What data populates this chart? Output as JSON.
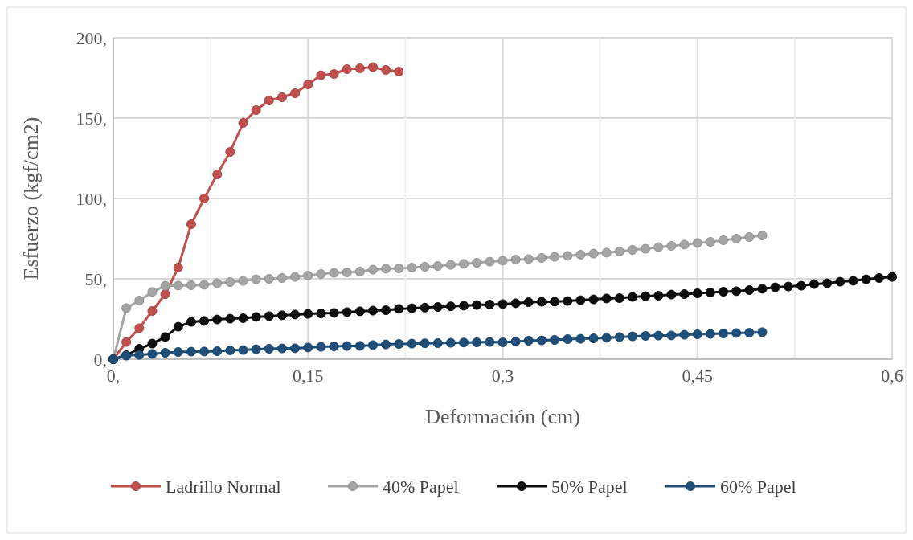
{
  "chart_data": {
    "type": "line",
    "xlabel": "Deformación (cm)",
    "ylabel": "Esfuerzo (kgf/cm2)",
    "xlim": [
      0,
      0.6
    ],
    "ylim": [
      0,
      200
    ],
    "xticks": [
      {
        "value": 0,
        "label": "0,"
      },
      {
        "value": 0.075,
        "label": null
      },
      {
        "value": 0.15,
        "label": "0,15"
      },
      {
        "value": 0.225,
        "label": null
      },
      {
        "value": 0.3,
        "label": "0,3"
      },
      {
        "value": 0.375,
        "label": null
      },
      {
        "value": 0.45,
        "label": "0,45"
      },
      {
        "value": 0.525,
        "label": null
      },
      {
        "value": 0.6,
        "label": "0,6"
      }
    ],
    "yticks": [
      {
        "value": 0,
        "label": "0,"
      },
      {
        "value": 50,
        "label": "50,"
      },
      {
        "value": 100,
        "label": "100,"
      },
      {
        "value": 150,
        "label": "150,"
      },
      {
        "value": 200,
        "label": "200,"
      }
    ],
    "grid": true,
    "legend": "bottom",
    "marker": "circle",
    "series": [
      {
        "name": "Ladrillo Normal",
        "color": "#c0504d",
        "x": [
          0,
          0.01,
          0.02,
          0.03,
          0.04,
          0.05,
          0.06,
          0.07,
          0.08,
          0.09,
          0.1,
          0.11,
          0.12,
          0.13,
          0.14,
          0.15,
          0.16,
          0.17,
          0.18,
          0.19,
          0.2,
          0.21,
          0.22
        ],
        "values": [
          0,
          10.7,
          19.3,
          30,
          40.5,
          57,
          84,
          100,
          115,
          129,
          147,
          155,
          161,
          163,
          165.5,
          171,
          176.7,
          177.5,
          180.5,
          181,
          181.7,
          180,
          179
        ]
      },
      {
        "name": "40% Papel",
        "color": "#a5a5a5",
        "x": [
          0,
          0.01,
          0.02,
          0.03,
          0.04,
          0.05,
          0.06,
          0.07,
          0.08,
          0.09,
          0.1,
          0.11,
          0.12,
          0.13,
          0.14,
          0.15,
          0.16,
          0.17,
          0.18,
          0.19,
          0.2,
          0.21,
          0.22,
          0.23,
          0.24,
          0.25,
          0.26,
          0.27,
          0.28,
          0.29,
          0.3,
          0.31,
          0.32,
          0.33,
          0.34,
          0.35,
          0.36,
          0.37,
          0.38,
          0.39,
          0.4,
          0.41,
          0.42,
          0.43,
          0.44,
          0.45,
          0.46,
          0.47,
          0.48,
          0.49,
          0.5
        ],
        "values": [
          0,
          31.8,
          36.5,
          41.8,
          45.7,
          45.8,
          46,
          46.3,
          47.2,
          48,
          48.7,
          49.7,
          50,
          50.5,
          51.2,
          52,
          53,
          53.7,
          54,
          54.5,
          55.7,
          56.3,
          56.5,
          57,
          57.5,
          58,
          58.7,
          59.3,
          60,
          60.7,
          61.3,
          62,
          62.3,
          63,
          63.7,
          64.3,
          65,
          65.7,
          66.3,
          67,
          68,
          68.7,
          69.7,
          70.5,
          71.3,
          72.3,
          73,
          74,
          75,
          76,
          77
        ]
      },
      {
        "name": "50% Papel",
        "color": "#0d0d0d",
        "x": [
          0,
          0.01,
          0.02,
          0.03,
          0.04,
          0.05,
          0.06,
          0.07,
          0.08,
          0.09,
          0.1,
          0.11,
          0.12,
          0.13,
          0.14,
          0.15,
          0.16,
          0.17,
          0.18,
          0.19,
          0.2,
          0.21,
          0.22,
          0.23,
          0.24,
          0.25,
          0.26,
          0.27,
          0.28,
          0.29,
          0.3,
          0.31,
          0.32,
          0.33,
          0.34,
          0.35,
          0.36,
          0.37,
          0.38,
          0.39,
          0.4,
          0.41,
          0.42,
          0.43,
          0.44,
          0.45,
          0.46,
          0.47,
          0.48,
          0.49,
          0.5,
          0.51,
          0.52,
          0.53,
          0.54,
          0.55,
          0.56,
          0.57,
          0.58,
          0.59,
          0.6
        ],
        "values": [
          0,
          2.5,
          6.5,
          9.7,
          13.8,
          20.2,
          23.2,
          23.8,
          24.7,
          25.2,
          25.5,
          26.3,
          26.8,
          27.3,
          27.8,
          28.2,
          28.5,
          28.8,
          29.3,
          29.8,
          30.2,
          30.5,
          31.3,
          31.7,
          32.1,
          32.5,
          32.9,
          33.3,
          33.7,
          34,
          34.3,
          34.8,
          35.5,
          35.7,
          35.8,
          36.2,
          36.7,
          37.2,
          37.8,
          38,
          38.7,
          39.2,
          39.5,
          40.2,
          40.5,
          41,
          41.5,
          42,
          42.3,
          43,
          43.8,
          44.7,
          45.2,
          45.7,
          46.7,
          47.2,
          48.2,
          48.8,
          49.7,
          50.5,
          51.2
        ]
      },
      {
        "name": "60% Papel",
        "color": "#1f4e79",
        "x": [
          0,
          0.01,
          0.02,
          0.03,
          0.04,
          0.05,
          0.06,
          0.07,
          0.08,
          0.09,
          0.1,
          0.11,
          0.12,
          0.13,
          0.14,
          0.15,
          0.16,
          0.17,
          0.18,
          0.19,
          0.2,
          0.21,
          0.22,
          0.23,
          0.24,
          0.25,
          0.26,
          0.27,
          0.28,
          0.29,
          0.3,
          0.31,
          0.32,
          0.33,
          0.34,
          0.35,
          0.36,
          0.37,
          0.38,
          0.39,
          0.4,
          0.41,
          0.42,
          0.43,
          0.44,
          0.45,
          0.46,
          0.47,
          0.48,
          0.49,
          0.5
        ],
        "values": [
          0,
          2.2,
          2.7,
          3.3,
          4,
          4.5,
          4.7,
          4.8,
          5,
          5.5,
          5.7,
          6.2,
          6.5,
          6.7,
          6.8,
          7.3,
          7.7,
          8,
          8.2,
          8.3,
          8.8,
          9.2,
          9.5,
          9.7,
          9.9,
          10,
          10.2,
          10.4,
          10.5,
          10.7,
          10.5,
          11,
          11.5,
          11.7,
          12,
          12.5,
          12.7,
          13,
          13.3,
          13.8,
          14.2,
          14.5,
          14.7,
          14.8,
          15.2,
          15.5,
          15.7,
          16,
          16.3,
          16.5,
          16.8
        ]
      }
    ]
  }
}
